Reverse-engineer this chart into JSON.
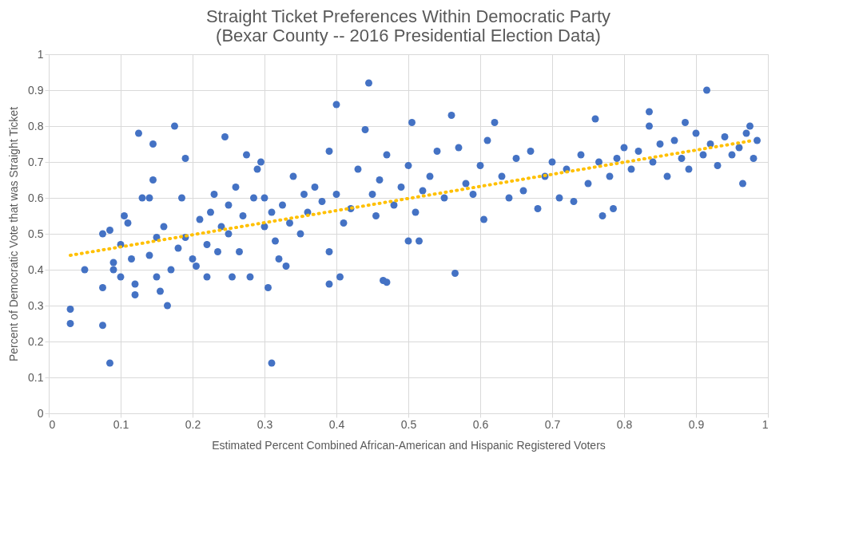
{
  "chart_data": {
    "type": "scatter",
    "title": "Straight Ticket Preferences Within Democratic Party\n(Bexar County -- 2016 Presidential Election Data)",
    "xlabel": "Estimated Percent Combined African-American and Hispanic Registered Voters",
    "ylabel": "Percent of Democratic Vote that  was Straight Ticket",
    "xlim": [
      0,
      1
    ],
    "xticks": [
      0,
      0.1,
      0.2,
      0.3,
      0.4,
      0.5,
      0.6,
      0.7,
      0.8,
      0.9,
      1
    ],
    "ylim": [
      0,
      1
    ],
    "yticks": [
      0,
      0.1,
      0.2,
      0.3,
      0.4,
      0.5,
      0.6,
      0.7,
      0.8,
      0.9,
      1
    ],
    "grid": true,
    "series": [
      {
        "color": "#4472c4",
        "marker": "circle",
        "x": [
          0.03,
          0.03,
          0.05,
          0.075,
          0.085,
          0.075,
          0.075,
          0.085,
          0.09,
          0.09,
          0.1,
          0.1,
          0.105,
          0.11,
          0.115,
          0.12,
          0.12,
          0.125,
          0.13,
          0.14,
          0.14,
          0.145,
          0.145,
          0.15,
          0.15,
          0.155,
          0.16,
          0.165,
          0.17,
          0.175,
          0.18,
          0.185,
          0.19,
          0.19,
          0.2,
          0.205,
          0.21,
          0.22,
          0.22,
          0.225,
          0.23,
          0.235,
          0.24,
          0.245,
          0.25,
          0.25,
          0.255,
          0.26,
          0.265,
          0.27,
          0.275,
          0.28,
          0.285,
          0.29,
          0.295,
          0.3,
          0.3,
          0.305,
          0.31,
          0.31,
          0.315,
          0.32,
          0.325,
          0.33,
          0.335,
          0.34,
          0.35,
          0.355,
          0.36,
          0.37,
          0.38,
          0.39,
          0.39,
          0.39,
          0.4,
          0.4,
          0.405,
          0.41,
          0.42,
          0.43,
          0.44,
          0.445,
          0.45,
          0.455,
          0.46,
          0.465,
          0.47,
          0.47,
          0.48,
          0.49,
          0.5,
          0.5,
          0.505,
          0.51,
          0.515,
          0.52,
          0.53,
          0.54,
          0.55,
          0.56,
          0.565,
          0.57,
          0.58,
          0.59,
          0.6,
          0.605,
          0.61,
          0.62,
          0.63,
          0.64,
          0.65,
          0.66,
          0.67,
          0.68,
          0.69,
          0.7,
          0.71,
          0.72,
          0.73,
          0.74,
          0.75,
          0.76,
          0.765,
          0.77,
          0.78,
          0.785,
          0.79,
          0.8,
          0.81,
          0.82,
          0.835,
          0.835,
          0.84,
          0.85,
          0.86,
          0.87,
          0.88,
          0.885,
          0.89,
          0.9,
          0.91,
          0.915,
          0.92,
          0.93,
          0.94,
          0.95,
          0.96,
          0.965,
          0.97,
          0.975,
          0.98,
          0.985
        ],
        "values": [
          0.29,
          0.25,
          0.4,
          0.245,
          0.14,
          0.35,
          0.5,
          0.51,
          0.42,
          0.4,
          0.38,
          0.47,
          0.55,
          0.53,
          0.43,
          0.36,
          0.33,
          0.78,
          0.6,
          0.6,
          0.44,
          0.75,
          0.65,
          0.49,
          0.38,
          0.34,
          0.52,
          0.3,
          0.4,
          0.8,
          0.46,
          0.6,
          0.71,
          0.49,
          0.43,
          0.41,
          0.54,
          0.38,
          0.47,
          0.56,
          0.61,
          0.45,
          0.52,
          0.77,
          0.58,
          0.5,
          0.38,
          0.63,
          0.45,
          0.55,
          0.72,
          0.38,
          0.6,
          0.68,
          0.7,
          0.52,
          0.6,
          0.35,
          0.14,
          0.56,
          0.48,
          0.43,
          0.58,
          0.41,
          0.53,
          0.66,
          0.5,
          0.61,
          0.56,
          0.63,
          0.59,
          0.73,
          0.45,
          0.36,
          0.86,
          0.61,
          0.38,
          0.53,
          0.57,
          0.68,
          0.79,
          0.92,
          0.61,
          0.55,
          0.65,
          0.37,
          0.365,
          0.72,
          0.58,
          0.63,
          0.48,
          0.69,
          0.81,
          0.56,
          0.48,
          0.62,
          0.66,
          0.73,
          0.6,
          0.83,
          0.39,
          0.74,
          0.64,
          0.61,
          0.69,
          0.54,
          0.76,
          0.81,
          0.66,
          0.6,
          0.71,
          0.62,
          0.73,
          0.57,
          0.66,
          0.7,
          0.6,
          0.68,
          0.59,
          0.72,
          0.64,
          0.82,
          0.7,
          0.55,
          0.66,
          0.57,
          0.71,
          0.74,
          0.68,
          0.73,
          0.84,
          0.8,
          0.7,
          0.75,
          0.66,
          0.76,
          0.71,
          0.81,
          0.68,
          0.78,
          0.72,
          0.9,
          0.75,
          0.69,
          0.77,
          0.72,
          0.74,
          0.64,
          0.78,
          0.8,
          0.71,
          0.76
        ]
      },
      {
        "type": "line",
        "color": "#ffc000",
        "line_style": "dotted",
        "x": [
          0.03,
          0.98
        ],
        "values": [
          0.44,
          0.76
        ]
      }
    ]
  }
}
